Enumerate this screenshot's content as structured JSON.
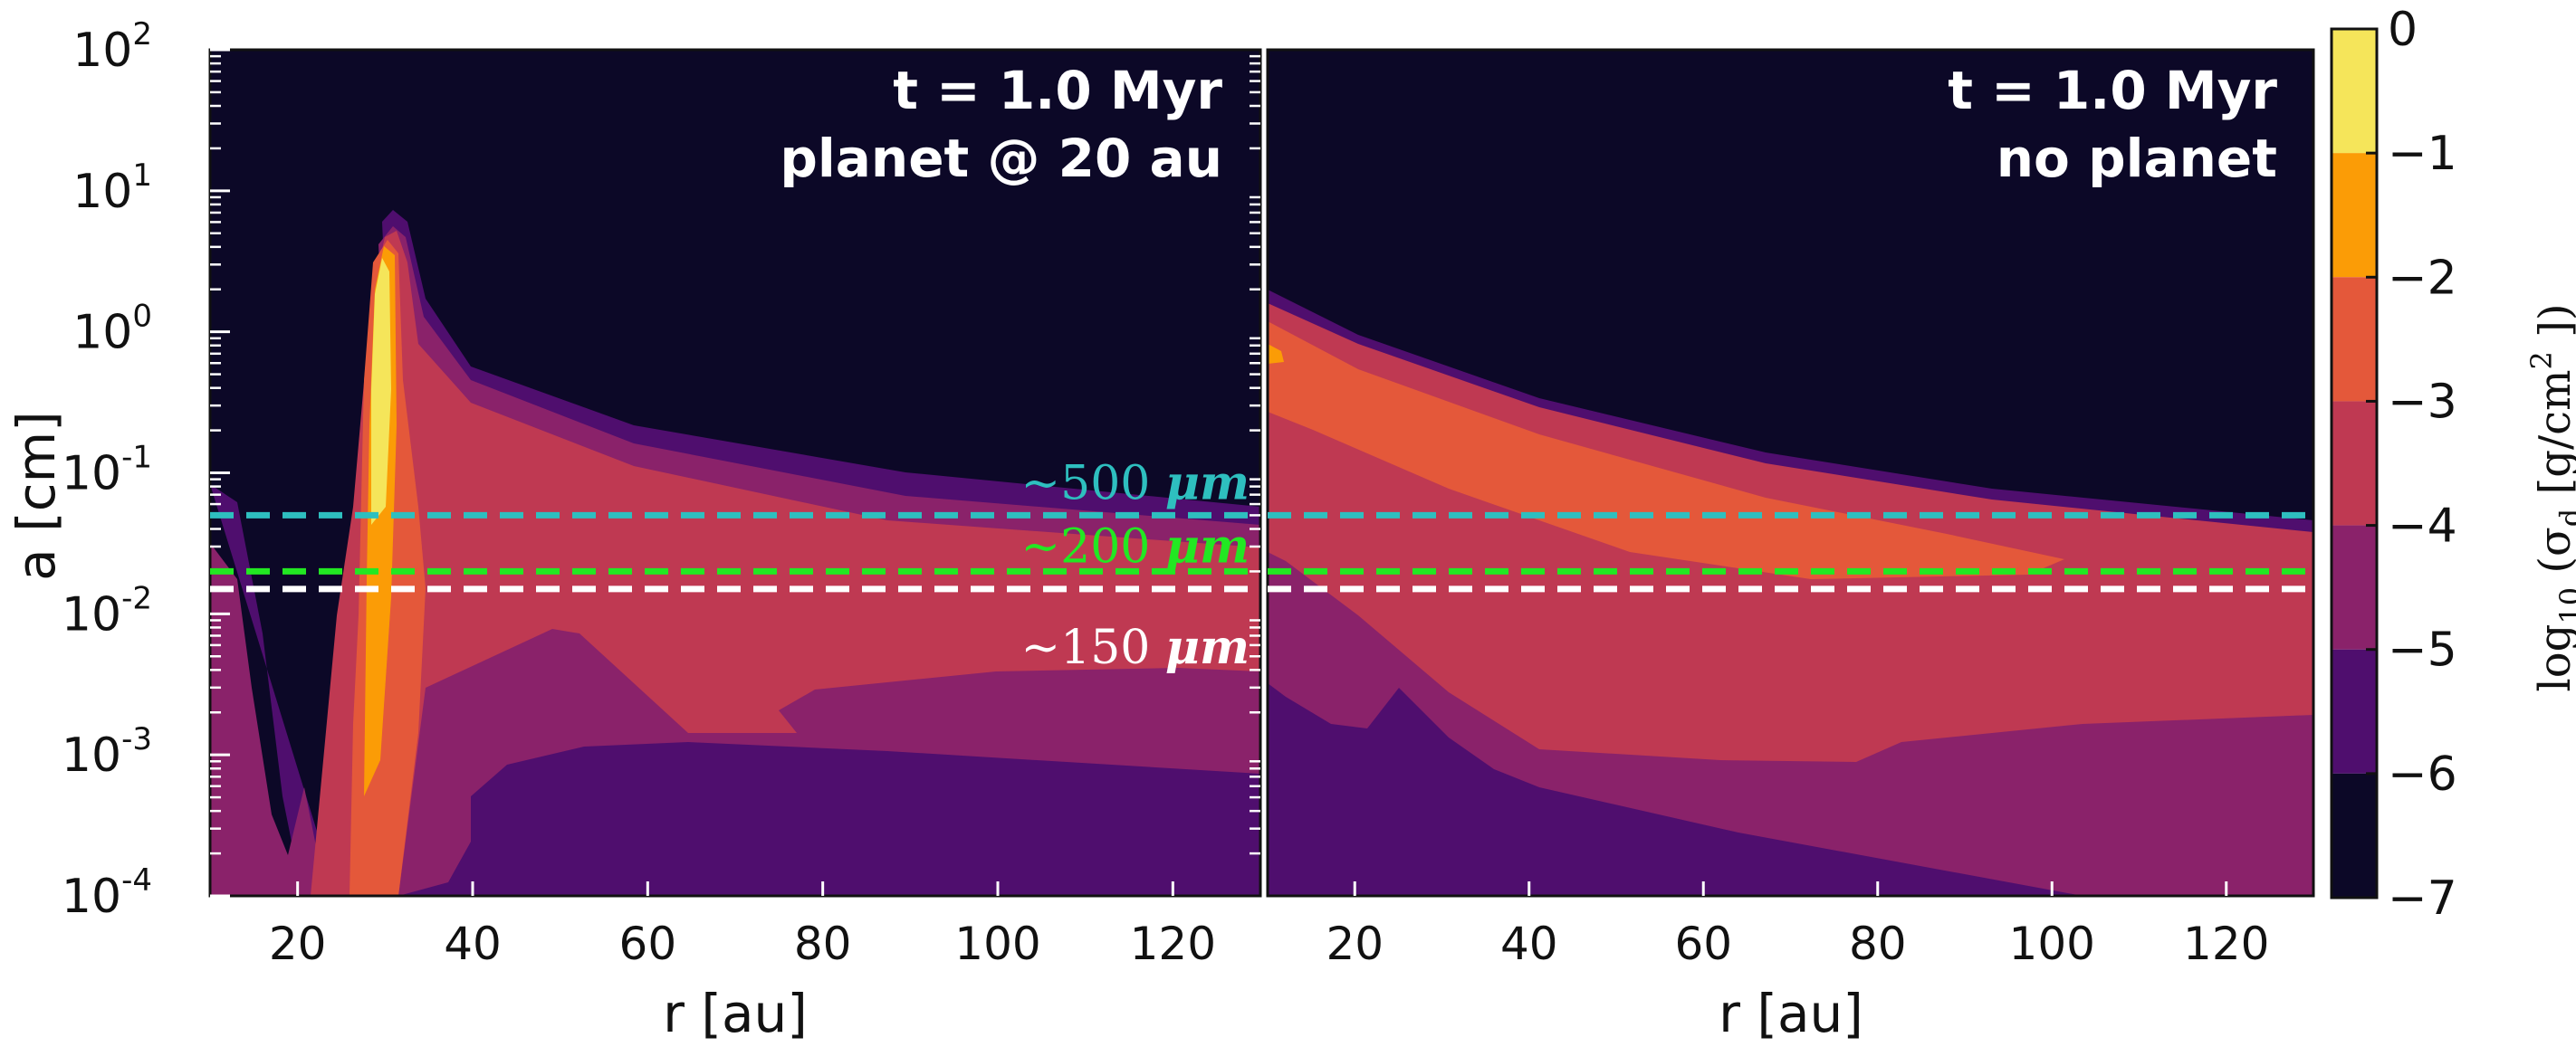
{
  "chart_data": [
    {
      "type": "contour",
      "panel": "left",
      "annotation_lines": [
        "t = 1.0 Myr",
        "planet @ 20 au"
      ],
      "xlabel": "r [au]",
      "ylabel": "a [cm]",
      "xlim": [
        10,
        130
      ],
      "ylim": [
        0.0001,
        100
      ],
      "yscale": "log",
      "x_ticks": [
        20,
        40,
        60,
        80,
        100,
        120
      ],
      "x_tick_labels": [
        "20",
        "40",
        "60",
        "80",
        "100",
        "120"
      ],
      "y_ticks": [
        0.0001,
        0.001,
        0.01,
        0.1,
        1,
        10,
        100
      ],
      "y_tick_base": [
        "10",
        "10",
        "10",
        "10",
        "10",
        "10",
        "10"
      ],
      "y_tick_exp": [
        "-4",
        "-3",
        "-2",
        "-1",
        "0",
        "1",
        "2"
      ],
      "reference_lines": [
        {
          "label": "~500 μm",
          "label_parts": [
            "~500 ",
            "μm"
          ],
          "y": 0.05,
          "color": "#2ebfbf"
        },
        {
          "label": "~200 μm",
          "label_parts": [
            "~200 ",
            "μm"
          ],
          "y": 0.02,
          "color": "#22e822"
        },
        {
          "label": "~150 μm",
          "label_parts": [
            "~150 ",
            "μm"
          ],
          "y": 0.015,
          "color": "#ffffff"
        }
      ]
    },
    {
      "type": "contour",
      "panel": "right",
      "annotation_lines": [
        "t = 1.0 Myr",
        "no planet"
      ],
      "xlabel": "r [au]",
      "xlim": [
        10,
        130
      ],
      "ylim": [
        0.0001,
        100
      ],
      "yscale": "log",
      "x_ticks": [
        20,
        40,
        60,
        80,
        100,
        120
      ],
      "x_tick_labels": [
        "20",
        "40",
        "60",
        "80",
        "100",
        "120"
      ],
      "reference_lines": [
        {
          "y": 0.05,
          "color": "#2ebfbf"
        },
        {
          "y": 0.02,
          "color": "#22e822"
        },
        {
          "y": 0.015,
          "color": "#ffffff"
        }
      ]
    }
  ],
  "colorbar": {
    "label": "log10 (σd [g/cm2 ])",
    "ticks": [
      0,
      -1,
      -2,
      -3,
      -4,
      -5,
      -6,
      -7
    ],
    "tick_labels": [
      "0",
      "−1",
      "−2",
      "−3",
      "−4",
      "−5",
      "−6",
      "−7"
    ],
    "levels": [
      {
        "range": [
          -1,
          0
        ],
        "color": "#f5e55a"
      },
      {
        "range": [
          -2,
          -1
        ],
        "color": "#fb9c06"
      },
      {
        "range": [
          -3,
          -2
        ],
        "color": "#e4583a"
      },
      {
        "range": [
          -4,
          -3
        ],
        "color": "#bf3952"
      },
      {
        "range": [
          -5,
          -4
        ],
        "color": "#8a226a"
      },
      {
        "range": [
          -6,
          -5
        ],
        "color": "#4f0e6e"
      },
      {
        "range": [
          -7,
          -6
        ],
        "color": "#0c0827"
      }
    ]
  }
}
